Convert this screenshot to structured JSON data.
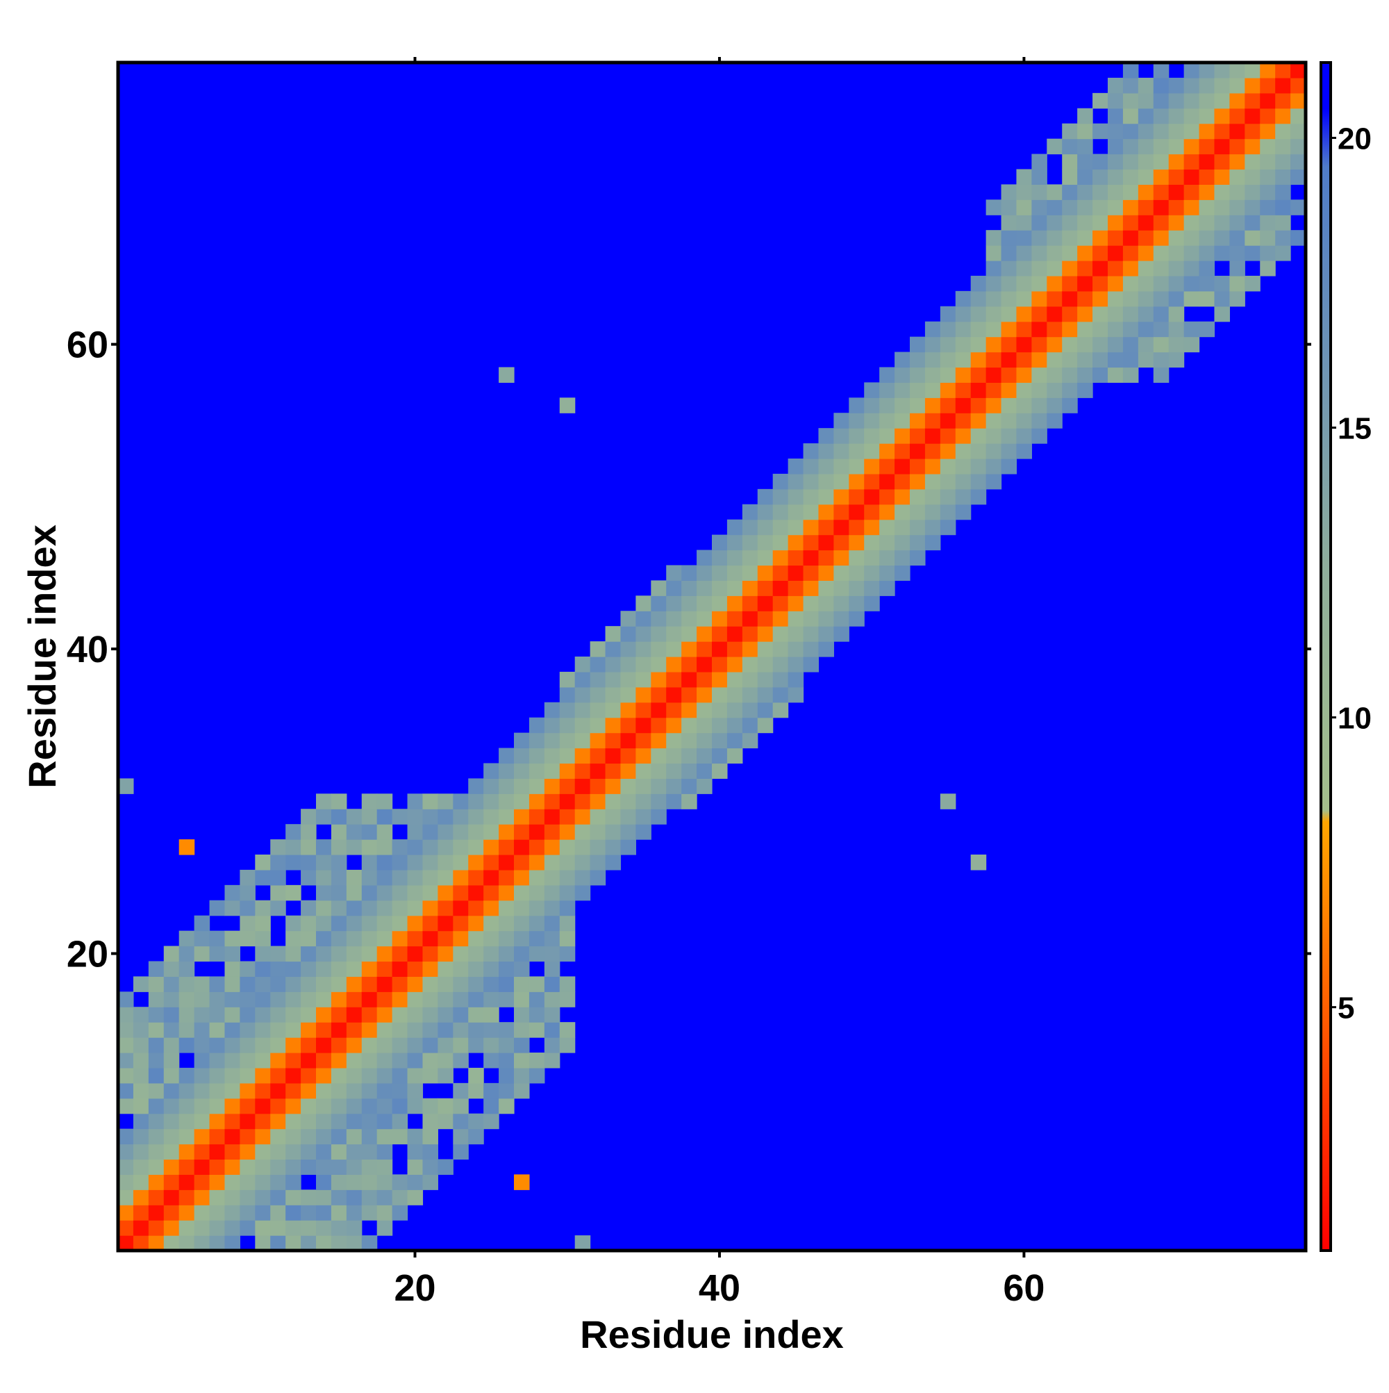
{
  "chart_data": {
    "type": "heatmap",
    "title": "",
    "xlabel": "Residue index",
    "ylabel": "Residue index",
    "n_residues": 78,
    "xlim": [
      0.5,
      78.5
    ],
    "ylim": [
      0.5,
      78.5
    ],
    "x_ticks": [
      20,
      40,
      60
    ],
    "y_ticks": [
      20,
      40,
      60
    ],
    "x_tick_labels": [
      "20",
      "40",
      "60"
    ],
    "y_tick_labels": [
      "20",
      "40",
      "60"
    ],
    "colorbar": {
      "range": [
        0.8,
        21.3
      ],
      "ticks": [
        5,
        10,
        15,
        20
      ],
      "tick_labels": [
        "5",
        "10",
        "15",
        "20"
      ],
      "stops": [
        {
          "value": 0.8,
          "color": "#ff0000"
        },
        {
          "value": 5.5,
          "color": "#ff6a00"
        },
        {
          "value": 8.2,
          "color": "#ffa500"
        },
        {
          "value": 8.4,
          "color": "#a4bf8c"
        },
        {
          "value": 12.5,
          "color": "#8fae9b"
        },
        {
          "value": 16.0,
          "color": "#6f95b4"
        },
        {
          "value": 19.5,
          "color": "#4f7cc9"
        },
        {
          "value": 20.5,
          "color": "#0000ff"
        }
      ],
      "background_value": 21
    },
    "description_of_values": "Symmetric residue-residue distance map; diagonal band near zero, blue background above ~20",
    "band_profile": [
      {
        "offset": 0,
        "value": 1.5
      },
      {
        "offset": 1,
        "value": 4.0
      },
      {
        "offset": 2,
        "value": 6.5
      },
      {
        "offset": 3,
        "value": 10.5
      },
      {
        "offset": 4,
        "value": 12.0
      },
      {
        "offset": 5,
        "value": 13.5
      },
      {
        "offset": 6,
        "value": 15.0
      },
      {
        "offset": 7,
        "value": 17.0
      }
    ],
    "contact_regions": [
      {
        "i_range": [
          1,
          30
        ],
        "j_range": [
          1,
          30
        ],
        "note": "broad contacts among residues 1-30"
      },
      {
        "i_range": [
          30,
          45
        ],
        "j_range": [
          30,
          45
        ],
        "note": "contacts near residues 30-45"
      },
      {
        "i_range": [
          45,
          58
        ],
        "j_range": [
          45,
          58
        ],
        "note": "contacts near residues 45-58"
      },
      {
        "i_range": [
          58,
          78
        ],
        "j_range": [
          58,
          78
        ],
        "note": "wide contacts among residues 58-78"
      }
    ],
    "isolated_points": [
      {
        "x": 26,
        "y": 58,
        "value": 13
      },
      {
        "x": 30,
        "y": 56,
        "value": 12
      },
      {
        "x": 55,
        "y": 30,
        "value": 13
      },
      {
        "x": 57,
        "y": 26,
        "value": 12
      },
      {
        "x": 5,
        "y": 27,
        "value": 7
      },
      {
        "x": 27,
        "y": 5,
        "value": 7
      },
      {
        "x": 31,
        "y": 1,
        "value": 14
      },
      {
        "x": 1,
        "y": 31,
        "value": 14
      }
    ]
  }
}
